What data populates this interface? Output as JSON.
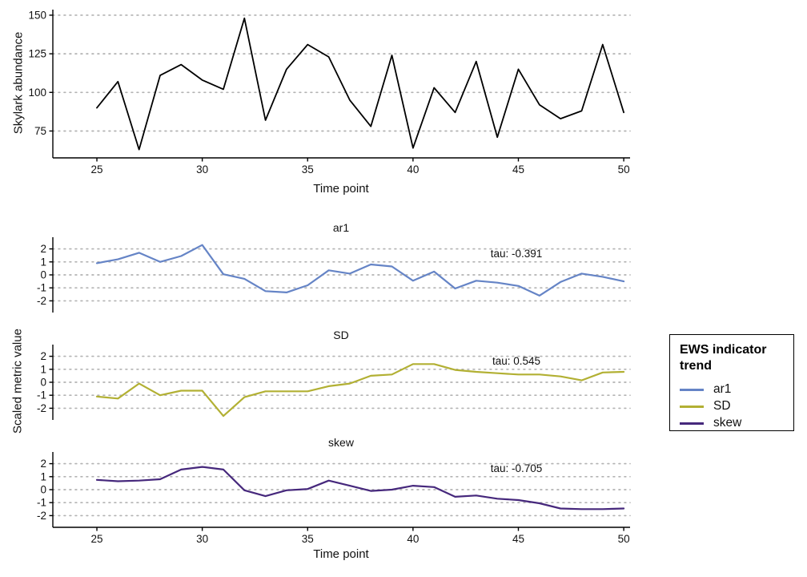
{
  "shared": {
    "xlabel": "Time point",
    "ylabel_bottom": "Scaled metric value",
    "x_ticks": [
      25,
      30,
      35,
      40,
      45,
      50
    ]
  },
  "legend": {
    "title": "EWS indicator trend",
    "items": [
      {
        "label": "ar1",
        "color": "#6584c6"
      },
      {
        "label": "SD",
        "color": "#b2b033"
      },
      {
        "label": "skew",
        "color": "#46287c"
      }
    ]
  },
  "chart_data": [
    {
      "type": "line",
      "name": "abundance",
      "title": "",
      "xlabel": "Time point",
      "ylabel": "Skylark abundance",
      "x": [
        25,
        26,
        27,
        28,
        29,
        30,
        31,
        32,
        33,
        34,
        35,
        36,
        37,
        38,
        39,
        40,
        41,
        42,
        43,
        44,
        45,
        46,
        47,
        48,
        49,
        50
      ],
      "values": [
        90,
        107,
        63,
        111,
        118,
        108,
        102,
        148,
        82,
        115,
        131,
        123,
        95,
        78,
        124,
        64,
        103,
        87,
        120,
        71,
        115,
        92,
        83,
        88,
        131,
        87
      ],
      "color": "#000000",
      "yticks": [
        75,
        100,
        125,
        150
      ],
      "xticks": [
        25,
        30,
        35,
        40,
        45,
        50
      ],
      "ylim": [
        57.6,
        153.6
      ],
      "xlim": [
        22.91,
        50.3
      ],
      "grid": "dotted-horizontal",
      "legend_position": "none"
    },
    {
      "type": "line",
      "name": "ar1",
      "facet_label": "ar1",
      "annotation": "tau: -0.391",
      "x": [
        25,
        26,
        27,
        28,
        29,
        30,
        31,
        32,
        33,
        34,
        35,
        36,
        37,
        38,
        39,
        40,
        41,
        42,
        43,
        44,
        45,
        46,
        47,
        48,
        49,
        50
      ],
      "values": [
        0.9,
        1.2,
        1.7,
        1.0,
        1.45,
        2.3,
        0.05,
        -0.3,
        -1.25,
        -1.35,
        -0.8,
        0.35,
        0.1,
        0.8,
        0.65,
        -0.45,
        0.25,
        -1.05,
        -0.45,
        -0.6,
        -0.85,
        -1.6,
        -0.55,
        0.1,
        -0.15,
        -0.5
      ],
      "color": "#6584c6",
      "yticks": [
        2,
        1,
        0,
        -1,
        -2
      ],
      "xticks": [
        25,
        30,
        35,
        40,
        45,
        50
      ],
      "ylim": [
        -2.9,
        2.9
      ],
      "xlim": [
        22.91,
        50.3
      ],
      "grid": "dotted-horizontal"
    },
    {
      "type": "line",
      "name": "SD",
      "facet_label": "SD",
      "annotation": "tau: 0.545",
      "x": [
        25,
        26,
        27,
        28,
        29,
        30,
        31,
        32,
        33,
        34,
        35,
        36,
        37,
        38,
        39,
        40,
        41,
        42,
        43,
        44,
        45,
        46,
        47,
        48,
        49,
        50
      ],
      "values": [
        -1.1,
        -1.25,
        -0.1,
        -1.0,
        -0.65,
        -0.65,
        -2.6,
        -1.15,
        -0.7,
        -0.7,
        -0.7,
        -0.3,
        -0.1,
        0.5,
        0.6,
        1.4,
        1.4,
        0.95,
        0.8,
        0.7,
        0.6,
        0.6,
        0.45,
        0.15,
        0.75,
        0.8
      ],
      "color": "#b2b033",
      "yticks": [
        2,
        1,
        0,
        -1,
        -2
      ],
      "xticks": [
        25,
        30,
        35,
        40,
        45,
        50
      ],
      "ylim": [
        -2.9,
        2.9
      ],
      "xlim": [
        22.91,
        50.3
      ],
      "grid": "dotted-horizontal"
    },
    {
      "type": "line",
      "name": "skew",
      "facet_label": "skew",
      "annotation": "tau: -0.705",
      "x": [
        25,
        26,
        27,
        28,
        29,
        30,
        31,
        32,
        33,
        34,
        35,
        36,
        37,
        38,
        39,
        40,
        41,
        42,
        43,
        44,
        45,
        46,
        47,
        48,
        49,
        50
      ],
      "values": [
        0.75,
        0.65,
        0.7,
        0.8,
        1.55,
        1.75,
        1.55,
        -0.05,
        -0.5,
        -0.05,
        0.05,
        0.7,
        0.3,
        -0.1,
        0.0,
        0.3,
        0.2,
        -0.55,
        -0.45,
        -0.7,
        -0.8,
        -1.05,
        -1.45,
        -1.5,
        -1.5,
        -1.45
      ],
      "color": "#46287c",
      "yticks": [
        2,
        1,
        0,
        -1,
        -2
      ],
      "xticks": [
        25,
        30,
        35,
        40,
        45,
        50
      ],
      "ylim": [
        -2.9,
        2.9
      ],
      "xlim": [
        22.91,
        50.3
      ],
      "grid": "dotted-horizontal"
    }
  ]
}
